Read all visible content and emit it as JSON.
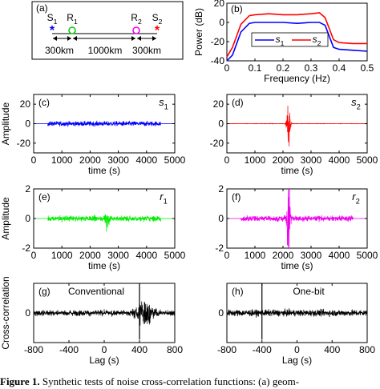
{
  "colors": {
    "s1": "#0000ff",
    "s2": "#ff0000",
    "r1": "#00ee00",
    "r2": "#ee00ee",
    "cc": "#000000"
  },
  "caption": {
    "label": "Figure 1.",
    "text": "Synthetic tests of noise cross-correlation functions: (a) geom-"
  },
  "chart_data": [
    {
      "type": "diagram",
      "panel": "(a)",
      "stations": [
        {
          "name": "S",
          "sub": "1",
          "marker": "asterisk",
          "color": "#0000ff"
        },
        {
          "name": "R",
          "sub": "1",
          "marker": "circle",
          "color": "#00cc00"
        },
        {
          "name": "R",
          "sub": "2",
          "marker": "circle",
          "color": "#ee00ee"
        },
        {
          "name": "S",
          "sub": "2",
          "marker": "asterisk",
          "color": "#ff0000"
        }
      ],
      "distances": [
        "300km",
        "1000km",
        "300km"
      ]
    },
    {
      "type": "line",
      "panel": "(b)",
      "xlabel": "Frequency (Hz)",
      "ylabel": "Power (dB)",
      "xlim": [
        0,
        0.5
      ],
      "ylim": [
        -40,
        20
      ],
      "xticks": [
        "0",
        "0.1",
        "0.2",
        "0.3",
        "0.4",
        "0.5"
      ],
      "yticks": [
        "-40",
        "-20",
        "0",
        "20"
      ],
      "legend": "bottom-center",
      "series": [
        {
          "name": "s",
          "sub": "1",
          "color": "#0000ff",
          "x": [
            0,
            0.02,
            0.05,
            0.08,
            0.1,
            0.15,
            0.2,
            0.25,
            0.3,
            0.33,
            0.35,
            0.38,
            0.4,
            0.45,
            0.5
          ],
          "y": [
            -40,
            -34,
            -10,
            -1,
            0,
            0,
            0,
            -1,
            0,
            0,
            -3,
            -26,
            -28,
            -29,
            -30
          ]
        },
        {
          "name": "s",
          "sub": "2",
          "color": "#ff0000",
          "x": [
            0,
            0.02,
            0.05,
            0.08,
            0.1,
            0.15,
            0.2,
            0.25,
            0.3,
            0.33,
            0.35,
            0.38,
            0.4,
            0.45,
            0.5
          ],
          "y": [
            -36,
            -26,
            -2,
            7,
            8,
            9,
            8,
            8,
            9,
            10,
            5,
            -18,
            -21,
            -22,
            -22
          ]
        }
      ]
    },
    {
      "type": "line",
      "panel": "(c)",
      "label": "s",
      "sub": "1",
      "xlabel": "time (s)",
      "ylabel": "Amplitude",
      "xlim": [
        0,
        5000
      ],
      "ylim": [
        -30,
        30
      ],
      "xticks": [
        "0",
        "1000",
        "2000",
        "3000",
        "4000",
        "5000"
      ],
      "yticks": [
        "-20",
        "0",
        "20"
      ],
      "color": "#0000ff",
      "signal": {
        "noise": [
          [
            500,
            4500,
            1.2
          ]
        ],
        "bursts": []
      }
    },
    {
      "type": "line",
      "panel": "(d)",
      "label": "s",
      "sub": "2",
      "xlabel": "time (s)",
      "ylabel": "",
      "xlim": [
        0,
        5000
      ],
      "ylim": [
        -30,
        30
      ],
      "xticks": [
        "0",
        "1000",
        "2000",
        "3000",
        "4000",
        "5000"
      ],
      "yticks": [
        "-20",
        "0",
        "20"
      ],
      "color": "#ff0000",
      "signal": {
        "noise": [
          [
            0,
            5000,
            0.1
          ]
        ],
        "bursts": [
          [
            2200,
            60,
            14
          ]
        ]
      }
    },
    {
      "type": "line",
      "panel": "(e)",
      "label": "r",
      "sub": "1",
      "xlabel": "time (s)",
      "ylabel": "Amplitude",
      "xlim": [
        0,
        5000
      ],
      "ylim": [
        -2,
        2
      ],
      "xticks": [
        "0",
        "1000",
        "2000",
        "3000",
        "4000",
        "5000"
      ],
      "yticks": [
        "-2",
        "0",
        "2"
      ],
      "color": "#00ee00",
      "signal": {
        "noise": [
          [
            500,
            4500,
            0.09
          ]
        ],
        "bursts": [
          [
            2600,
            70,
            0.55
          ]
        ]
      }
    },
    {
      "type": "line",
      "panel": "(f)",
      "label": "r",
      "sub": "2",
      "xlabel": "time (s)",
      "ylabel": "",
      "xlim": [
        0,
        5000
      ],
      "ylim": [
        -2,
        2
      ],
      "xticks": [
        "0",
        "1000",
        "2000",
        "3000",
        "4000",
        "5000"
      ],
      "yticks": [
        "-2",
        "0",
        "2"
      ],
      "color": "#ee00ee",
      "signal": {
        "noise": [
          [
            500,
            4500,
            0.09
          ]
        ],
        "bursts": [
          [
            2200,
            55,
            1.6
          ]
        ]
      }
    },
    {
      "type": "line",
      "panel": "(g)",
      "label": "Conventional",
      "sub": "",
      "xlabel": "Lag (s)",
      "ylabel": "Cross-correlation",
      "xlim": [
        -800,
        800
      ],
      "ylim": [
        -1.5,
        1.5
      ],
      "xticks": [
        "-800",
        "-400",
        "0",
        "400",
        "800"
      ],
      "yticks": [
        "0"
      ],
      "color": "#000000",
      "signal": {
        "noise": [
          [
            -800,
            800,
            0.07
          ]
        ],
        "bursts": [
          [
            450,
            110,
            0.35
          ]
        ],
        "spike": [
          400,
          1.5
        ]
      }
    },
    {
      "type": "line",
      "panel": "(h)",
      "label": "One-bit",
      "sub": "",
      "xlabel": "Lag (s)",
      "ylabel": "",
      "xlim": [
        -800,
        800
      ],
      "ylim": [
        -1.5,
        1.5
      ],
      "xticks": [
        "-800",
        "-400",
        "0",
        "400",
        "800"
      ],
      "yticks": [
        "0"
      ],
      "color": "#000000",
      "signal": {
        "noise": [
          [
            -800,
            800,
            0.08
          ]
        ],
        "bursts": [],
        "spike": [
          -400,
          1.5
        ]
      }
    }
  ]
}
